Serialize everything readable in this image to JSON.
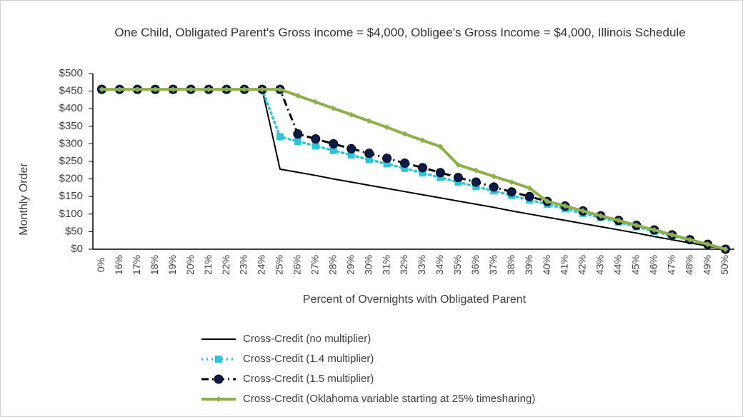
{
  "chart_data": {
    "type": "line",
    "title": "One Child, Obligated Parent's Gross income = $4,000, Obligee's Gross Income = $4,000, Illinois Schedule",
    "x_label": "Percent of Overnights with Obligated Parent",
    "y_label": "Monthly Order",
    "categories": [
      "0%",
      "16%",
      "17%",
      "18%",
      "19%",
      "20%",
      "21%",
      "22%",
      "23%",
      "24%",
      "25%",
      "26%",
      "27%",
      "28%",
      "29%",
      "30%",
      "31%",
      "32%",
      "33%",
      "34%",
      "35%",
      "36%",
      "37%",
      "38%",
      "39%",
      "40%",
      "41%",
      "42%",
      "43%",
      "44%",
      "45%",
      "46%",
      "47%",
      "48%",
      "49%",
      "50%"
    ],
    "ylim": [
      0,
      500
    ],
    "yticks": [
      {
        "value": 0,
        "label": "$0"
      },
      {
        "value": 50,
        "label": "$50"
      },
      {
        "value": 100,
        "label": "$100"
      },
      {
        "value": 150,
        "label": "$150"
      },
      {
        "value": 200,
        "label": "$200"
      },
      {
        "value": 250,
        "label": "$250"
      },
      {
        "value": 300,
        "label": "$300"
      },
      {
        "value": 350,
        "label": "$350"
      },
      {
        "value": 400,
        "label": "$400"
      },
      {
        "value": 450,
        "label": "$450"
      },
      {
        "value": 500,
        "label": "$500"
      }
    ],
    "legend": "bottom",
    "series": [
      {
        "name": "Cross-Credit (no multiplier)",
        "color": "#000000",
        "dash": "solid",
        "marker": "none",
        "values": [
          455,
          455,
          455,
          455,
          455,
          455,
          455,
          455,
          455,
          455,
          228,
          219,
          210,
          200,
          191,
          182,
          173,
          164,
          155,
          146,
          137,
          128,
          119,
          109,
          100,
          91,
          82,
          73,
          64,
          55,
          46,
          36,
          27,
          18,
          9,
          0
        ]
      },
      {
        "name": "Cross-Credit (1.4 multiplier)",
        "color": "#2ec4d6",
        "dash": "dot",
        "marker": "square",
        "values": [
          455,
          455,
          455,
          455,
          455,
          455,
          455,
          455,
          455,
          455,
          320,
          307,
          294,
          281,
          268,
          255,
          243,
          230,
          217,
          204,
          191,
          178,
          166,
          153,
          140,
          128,
          115,
          102,
          90,
          77,
          64,
          51,
          38,
          26,
          13,
          0
        ]
      },
      {
        "name": "Cross-Credit (1.5 multiplier)",
        "color": "#0d1b4a",
        "dash": "dashdot",
        "marker": "circle",
        "values": [
          455,
          455,
          455,
          455,
          455,
          455,
          455,
          455,
          455,
          455,
          455,
          328,
          314,
          300,
          286,
          273,
          259,
          245,
          232,
          218,
          204,
          191,
          177,
          163,
          150,
          136,
          123,
          109,
          95,
          82,
          68,
          55,
          41,
          27,
          14,
          0
        ]
      },
      {
        "name": "Cross-Credit (Oklahoma variable starting at 25% timesharing)",
        "color": "#8db04a",
        "dash": "solid",
        "marker": "diamond",
        "values": [
          455,
          455,
          455,
          455,
          455,
          455,
          455,
          455,
          455,
          455,
          455,
          437,
          419,
          401,
          383,
          365,
          347,
          328,
          310,
          292,
          240,
          224,
          207,
          191,
          174,
          136,
          123,
          109,
          95,
          82,
          68,
          55,
          41,
          27,
          14,
          0
        ]
      }
    ]
  }
}
